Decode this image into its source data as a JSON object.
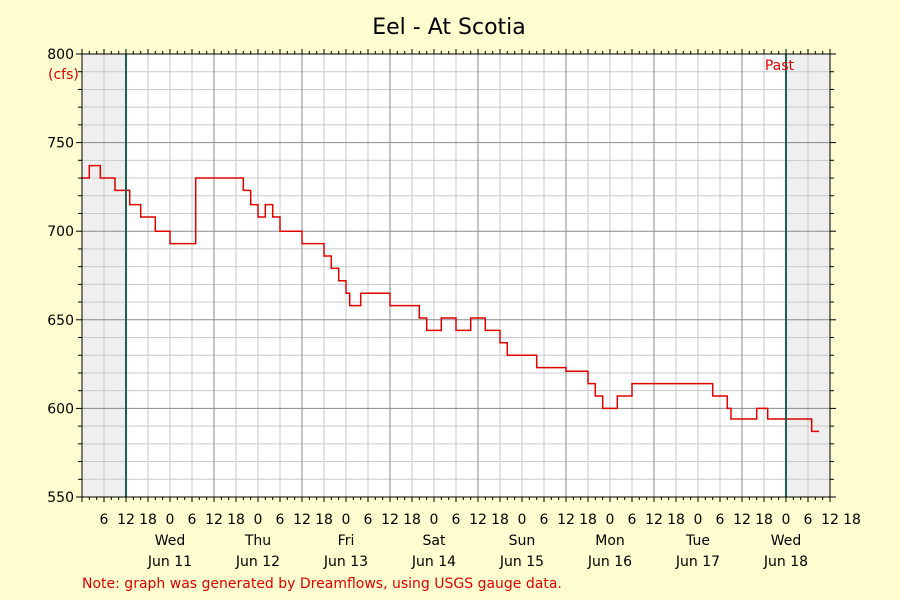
{
  "chart_data": {
    "type": "line",
    "title": "Eel - At Scotia",
    "ylabel": "(cfs)",
    "ylim": [
      550,
      800
    ],
    "yticks": [
      550,
      600,
      650,
      700,
      750,
      800
    ],
    "xlim_hours": [
      -12,
      192
    ],
    "hour_tick_labels": [
      "6",
      "12",
      "18",
      "0",
      "6",
      "12",
      "18",
      "0",
      "6",
      "12",
      "18",
      "0",
      "6",
      "12",
      "18",
      "0",
      "6",
      "12",
      "18",
      "0",
      "6",
      "12",
      "18",
      "0",
      "6",
      "12",
      "18",
      "0",
      "6",
      "12",
      "18",
      "0",
      "6",
      "12",
      "18"
    ],
    "day_labels": [
      {
        "day": "Wed",
        "date": "Jun 11"
      },
      {
        "day": "Thu",
        "date": "Jun 12"
      },
      {
        "day": "Fri",
        "date": "Jun 13"
      },
      {
        "day": "Sat",
        "date": "Jun 14"
      },
      {
        "day": "Sun",
        "date": "Jun 15"
      },
      {
        "day": "Mon",
        "date": "Jun 16"
      },
      {
        "day": "Tue",
        "date": "Jun 17"
      },
      {
        "day": "Wed",
        "date": "Jun 18"
      }
    ],
    "past_marker_text": "Past",
    "grid": true,
    "colors": {
      "line": "#e00000",
      "background": "#fdfdd0",
      "plot": "#ffffff",
      "shade": "#efefef",
      "marker": "#1f5f4f"
    },
    "series": [
      {
        "x": [
          -12,
          -11,
          -10,
          -9,
          -7,
          -5,
          -4,
          -3,
          0,
          1,
          2,
          4,
          6,
          7,
          8,
          9,
          10,
          12,
          14,
          16,
          18,
          19,
          20,
          20.5,
          30,
          32,
          33,
          34,
          35,
          36,
          37,
          38,
          40,
          42,
          44,
          45,
          46,
          48,
          50,
          52,
          54,
          55,
          56,
          58,
          60,
          61,
          62,
          63,
          64,
          65,
          66,
          68,
          70,
          72,
          74,
          76,
          78,
          80,
          82,
          84,
          86,
          88,
          90,
          92,
          94,
          96,
          98,
          100,
          102,
          104,
          106,
          108,
          110,
          112,
          114,
          116,
          118,
          120,
          122,
          124,
          126,
          128,
          130,
          132,
          134,
          136,
          138,
          140,
          141,
          142,
          143,
          146,
          150,
          155,
          160,
          162,
          164,
          165,
          166,
          167,
          168,
          170,
          172,
          174,
          175,
          176,
          178,
          180,
          182,
          183,
          184,
          186,
          187,
          189
        ],
        "y": [
          730,
          730,
          737,
          737,
          730,
          730,
          730,
          723,
          723,
          715,
          715,
          708,
          708,
          708,
          700,
          700,
          700,
          693,
          693,
          693,
          693,
          730,
          730,
          730,
          730,
          723,
          723,
          715,
          715,
          708,
          708,
          715,
          708,
          700,
          700,
          700,
          700,
          693,
          693,
          693,
          686,
          686,
          679,
          672,
          665,
          658,
          658,
          658,
          665,
          665,
          665,
          665,
          665,
          658,
          658,
          658,
          658,
          651,
          644,
          644,
          651,
          651,
          644,
          644,
          651,
          651,
          644,
          644,
          637,
          630,
          630,
          630,
          630,
          623,
          623,
          623,
          623,
          621,
          621,
          621,
          614,
          607,
          600,
          600,
          607,
          607,
          614,
          614,
          614,
          614,
          614,
          614,
          614,
          614,
          607,
          607,
          600,
          594,
          594,
          594,
          594,
          594,
          600,
          600,
          594,
          594,
          594,
          594,
          594,
          594,
          594,
          594,
          587,
          587
        ]
      }
    ]
  },
  "footer": {
    "note": "Note: graph was generated by Dreamflows, using USGS gauge data."
  }
}
